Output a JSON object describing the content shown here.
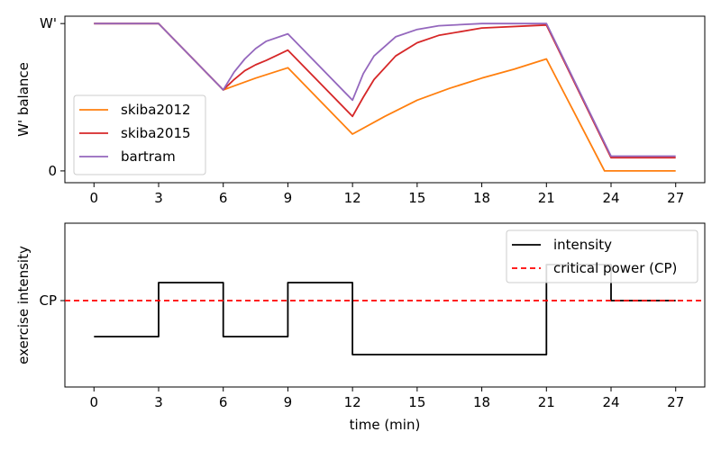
{
  "chart_data": [
    {
      "type": "line",
      "ylabel": "W' balance",
      "xlabel": "",
      "xlim": [
        -1.35,
        28.35
      ],
      "ylim": [
        -0.08,
        1.05
      ],
      "xticks": [
        0,
        3,
        6,
        9,
        12,
        15,
        18,
        21,
        24,
        27
      ],
      "xtick_labels": [
        "0",
        "3",
        "6",
        "9",
        "12",
        "15",
        "18",
        "21",
        "24",
        "27"
      ],
      "yticks": [
        0,
        1
      ],
      "ytick_labels": [
        "0",
        "W'"
      ],
      "legend_position": "center-left",
      "series": [
        {
          "name": "skiba2012",
          "color": "#ff7f0e",
          "x": [
            0,
            3,
            6,
            7.5,
            9,
            12,
            13.5,
            15,
            16.5,
            18,
            19.5,
            21,
            23.7,
            24,
            27
          ],
          "y": [
            1.0,
            1.0,
            0.55,
            0.63,
            0.7,
            0.25,
            0.37,
            0.48,
            0.56,
            0.63,
            0.69,
            0.76,
            0.0,
            0.0,
            0.0
          ]
        },
        {
          "name": "skiba2015",
          "color": "#d62728",
          "x": [
            0,
            3,
            6,
            6.5,
            7,
            7.5,
            8,
            9,
            12,
            12.5,
            13,
            14,
            15,
            16,
            18,
            21,
            24,
            27
          ],
          "y": [
            1.0,
            1.0,
            0.55,
            0.62,
            0.68,
            0.72,
            0.75,
            0.82,
            0.37,
            0.5,
            0.62,
            0.78,
            0.87,
            0.92,
            0.97,
            0.99,
            0.09,
            0.09
          ]
        },
        {
          "name": "bartram",
          "color": "#9467bd",
          "x": [
            0,
            3,
            6,
            6.5,
            7,
            7.5,
            8,
            9,
            12,
            12.5,
            13,
            14,
            15,
            16,
            18,
            21,
            24,
            27
          ],
          "y": [
            1.0,
            1.0,
            0.55,
            0.67,
            0.76,
            0.83,
            0.88,
            0.93,
            0.48,
            0.66,
            0.78,
            0.91,
            0.96,
            0.985,
            1.0,
            1.0,
            0.1,
            0.1
          ]
        }
      ]
    },
    {
      "type": "line",
      "ylabel": "exercise intensity",
      "xlabel": "time (min)",
      "xlim": [
        -1.35,
        28.35
      ],
      "ylim": [
        0.32,
        1.23
      ],
      "xticks": [
        0,
        3,
        6,
        9,
        12,
        15,
        18,
        21,
        24,
        27
      ],
      "xtick_labels": [
        "0",
        "3",
        "6",
        "9",
        "12",
        "15",
        "18",
        "21",
        "24",
        "27"
      ],
      "yticks": [
        0.8
      ],
      "ytick_labels": [
        "CP"
      ],
      "legend_position": "top-right",
      "series": [
        {
          "name": "intensity",
          "color": "#000000",
          "style": "solid",
          "x": [
            0,
            3,
            3,
            6,
            6,
            9,
            9,
            12,
            12,
            21,
            21,
            24,
            24,
            27
          ],
          "y": [
            0.6,
            0.6,
            0.9,
            0.9,
            0.6,
            0.6,
            0.9,
            0.9,
            0.5,
            0.5,
            1.0,
            1.0,
            0.8,
            0.8
          ]
        },
        {
          "name": "critical power (CP)",
          "color": "#ff0000",
          "style": "dashed",
          "hline": 0.8
        }
      ]
    }
  ]
}
